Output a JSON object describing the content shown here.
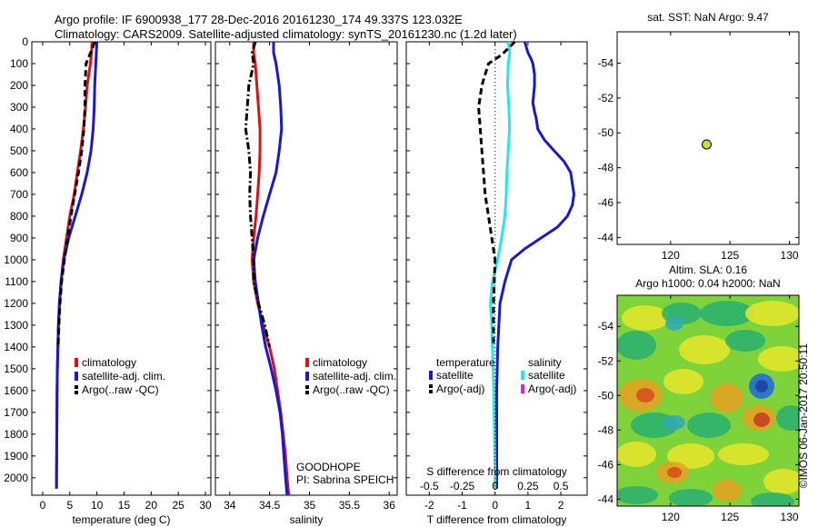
{
  "title_line1": "Argo profile: IF 6900938_177 28-Dec-2016 20161230_174 49.337S 123.032E",
  "title_line2": "Climatology: CARS2009. Satellite-adjusted climatology: synTS_20161230.nc (1.2d later)",
  "watermark": "©IMOS 06-Jan-2017 20:50:11",
  "colors": {
    "climatology": "#e01010",
    "satellite": "#1818d0",
    "argo": "#000000",
    "cyan": "#22e8e8",
    "magenta": "#e020e0"
  },
  "chart_data": [
    {
      "type": "line",
      "panel": "temperature",
      "xlabel": "temperature (deg C)",
      "ylabel": "",
      "xlim": [
        -2,
        31
      ],
      "ylim": [
        2080,
        0
      ],
      "xticks": [
        "0",
        "5",
        "10",
        "15",
        "20",
        "25",
        "30"
      ],
      "yticks": [
        "0",
        "100",
        "200",
        "300",
        "400",
        "500",
        "600",
        "700",
        "800",
        "900",
        "1000",
        "1100",
        "1200",
        "1300",
        "1400",
        "1500",
        "1600",
        "1700",
        "1800",
        "1900",
        "2000"
      ],
      "legend": [
        "climatology",
        "satellite-adj. clim.",
        "Argo(..raw -QC)"
      ],
      "series": [
        {
          "name": "climatology",
          "style": "solid",
          "color": "#e01010",
          "x": [
            9.1,
            9.0,
            8.8,
            8.5,
            8.2,
            7.9,
            7.5,
            7.0,
            6.4,
            5.8,
            5.0,
            4.4,
            3.8,
            3.4,
            3.1,
            2.9,
            2.8,
            2.7,
            2.65,
            2.6,
            2.55,
            2.55
          ],
          "y": [
            0,
            50,
            100,
            150,
            200,
            300,
            400,
            500,
            600,
            700,
            800,
            900,
            1000,
            1100,
            1200,
            1300,
            1400,
            1500,
            1600,
            1800,
            2000,
            2050
          ]
        },
        {
          "name": "satellite-adj. clim.",
          "style": "solid",
          "color": "#1818d0",
          "x": [
            10.0,
            9.9,
            9.8,
            9.7,
            9.6,
            9.5,
            9.3,
            8.9,
            8.2,
            7.2,
            6.0,
            4.8,
            3.9,
            3.4,
            3.1,
            2.9,
            2.8,
            2.7,
            2.65,
            2.6,
            2.55,
            2.55
          ],
          "y": [
            0,
            50,
            100,
            150,
            200,
            300,
            400,
            500,
            600,
            700,
            800,
            900,
            1000,
            1100,
            1200,
            1300,
            1400,
            1500,
            1600,
            1800,
            2000,
            2050
          ]
        },
        {
          "name": "Argo(..raw -QC)",
          "style": "dashed",
          "color": "#000000",
          "x": [
            9.6,
            9.0,
            8.0,
            7.8,
            7.8,
            7.6,
            7.2,
            6.6,
            5.9,
            5.2,
            4.6,
            4.0,
            3.5,
            3.2,
            3.0,
            2.85
          ],
          "y": [
            0,
            40,
            100,
            200,
            300,
            400,
            500,
            600,
            700,
            800,
            900,
            1000,
            1100,
            1200,
            1300,
            1400
          ]
        }
      ]
    },
    {
      "type": "line",
      "panel": "salinity",
      "xlabel": "salinity",
      "ylabel": "",
      "xlim": [
        33.82,
        36.1
      ],
      "ylim": [
        2080,
        0
      ],
      "xticks": [
        "34",
        "34.5",
        "35",
        "35.5",
        "36"
      ],
      "legend": [
        "climatology",
        "satellite-adj. clim.",
        "Argo(..raw -QC)"
      ],
      "annotation": [
        "GOODHOPE",
        "PI: Sabrina SPEICH"
      ],
      "series": [
        {
          "name": "climatology",
          "style": "solid",
          "color": "#e01010",
          "x": [
            34.3,
            34.3,
            34.32,
            34.34,
            34.36,
            34.38,
            34.38,
            34.37,
            34.35,
            34.33,
            34.3,
            34.28,
            34.3,
            34.35,
            34.42,
            34.5,
            34.56,
            34.6,
            34.64,
            34.67,
            34.7,
            34.72,
            34.74
          ],
          "y": [
            0,
            50,
            100,
            200,
            300,
            400,
            500,
            600,
            700,
            800,
            900,
            1000,
            1100,
            1200,
            1300,
            1400,
            1500,
            1600,
            1700,
            1800,
            1900,
            2000,
            2080
          ]
        },
        {
          "name": "satellite-adj. clim.",
          "style": "solid",
          "color": "#1818d0",
          "x": [
            34.55,
            34.55,
            34.58,
            34.62,
            34.64,
            34.65,
            34.62,
            34.58,
            34.5,
            34.42,
            34.35,
            34.3,
            34.32,
            34.36,
            34.4,
            34.45,
            34.52,
            34.58,
            34.63,
            34.66,
            34.68,
            34.7,
            34.72
          ],
          "y": [
            0,
            50,
            100,
            200,
            300,
            400,
            500,
            600,
            700,
            800,
            900,
            1000,
            1100,
            1200,
            1300,
            1400,
            1500,
            1600,
            1700,
            1800,
            1900,
            2000,
            2080
          ]
        },
        {
          "name": "Argo(..raw -QC)",
          "style": "dashdot",
          "color": "#000000",
          "x": [
            34.32,
            34.28,
            34.3,
            34.24,
            34.22,
            34.2,
            34.24,
            34.26,
            34.25,
            34.26,
            34.28,
            34.3,
            34.3,
            34.36,
            34.44,
            34.5
          ],
          "y": [
            0,
            50,
            100,
            200,
            300,
            400,
            500,
            600,
            700,
            800,
            900,
            1000,
            1100,
            1200,
            1300,
            1400
          ]
        }
      ]
    },
    {
      "type": "line",
      "panel": "difference",
      "xlabel": "T difference from climatology",
      "xlabel_top": "S difference from climatology",
      "ylabel": "",
      "xlim": [
        -2.7,
        2.8
      ],
      "ylim": [
        2080,
        0
      ],
      "xticks": [
        "-2",
        "-1",
        "0",
        "1",
        "2"
      ],
      "xticks_s": [
        "-0.5",
        "-0.25",
        "0",
        "0.25",
        "0.5"
      ],
      "legend_headers": [
        "temperature",
        "salinity"
      ],
      "legend": [
        "satellite",
        "Argo(-adj)",
        "satellite",
        "Argo(-adj)"
      ],
      "series": [
        {
          "name": "T satellite",
          "style": "solid",
          "color": "#1818d0",
          "x": [
            0.9,
            1.0,
            1.1,
            1.15,
            1.2,
            1.2,
            1.15,
            1.2,
            1.25,
            1.3,
            1.5,
            1.8,
            2.1,
            2.3,
            2.4,
            2.35,
            2.2,
            1.9,
            1.4,
            0.9,
            0.5,
            0.3,
            0.15,
            0.08,
            0.05,
            0.05,
            0.05
          ],
          "y": [
            0,
            50,
            80,
            100,
            150,
            200,
            280,
            320,
            350,
            400,
            450,
            500,
            550,
            600,
            700,
            750,
            800,
            850,
            900,
            950,
            1000,
            1100,
            1200,
            1400,
            1600,
            1800,
            2050
          ]
        },
        {
          "name": "S satellite",
          "style": "solid",
          "color": "#22e8e8",
          "x": [
            0.4,
            0.45,
            0.4,
            0.38,
            0.42,
            0.44,
            0.4,
            0.36,
            0.34,
            0.3,
            0.2,
            0.08,
            -0.08,
            -0.14,
            -0.1,
            -0.08,
            -0.06,
            -0.04,
            -0.02,
            0.0,
            0.0
          ],
          "y": [
            0,
            50,
            100,
            200,
            300,
            400,
            500,
            600,
            700,
            800,
            900,
            1000,
            1100,
            1200,
            1300,
            1400,
            1500,
            1600,
            1800,
            2000,
            2050
          ]
        },
        {
          "name": "T Argo(-adj)",
          "style": "dashed",
          "color": "#000000",
          "x": [
            0.6,
            0.2,
            -0.2,
            -0.3,
            -0.4,
            -0.5,
            -0.45,
            -0.4,
            -0.35,
            -0.3,
            -0.2,
            -0.1,
            0.0,
            -0.05,
            -0.05
          ],
          "y": [
            0,
            60,
            100,
            150,
            200,
            300,
            400,
            500,
            600,
            700,
            800,
            900,
            1000,
            1200,
            1400
          ]
        }
      ]
    },
    {
      "type": "scatter",
      "panel": "map",
      "title": "sat. SST: NaN Argo: 9.47",
      "xlim": [
        115.5,
        130.8
      ],
      "ylim": [
        -55.8,
        -43.6
      ],
      "xticks": [
        "120",
        "125",
        "130"
      ],
      "yticks": [
        "-44",
        "-46",
        "-48",
        "-50",
        "-52",
        "-54"
      ],
      "points": [
        {
          "x": 123.032,
          "y": -49.337
        }
      ]
    },
    {
      "type": "heatmap",
      "panel": "sla",
      "title_line1": "Altim. SLA: 0.16",
      "title_line2": "Argo h1000: 0.04 h2000: NaN",
      "xlim": [
        115.5,
        130.8
      ],
      "ylim": [
        -55.8,
        -43.6
      ],
      "xticks": [
        "120",
        "125",
        "130"
      ],
      "yticks": [
        "-44",
        "-46",
        "-48",
        "-50",
        "-52",
        "-54"
      ]
    }
  ]
}
